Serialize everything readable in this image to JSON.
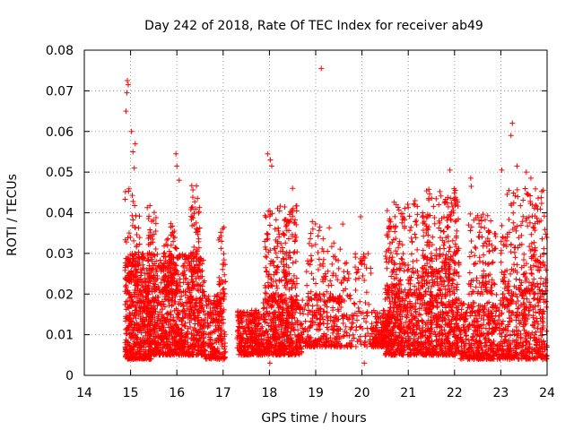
{
  "chart_data": {
    "type": "scatter",
    "title": "Day 242 of 2018, Rate Of TEC Index for receiver ab49",
    "xlabel": "GPS time / hours",
    "ylabel": "ROTI / TECUs",
    "xlim": [
      14,
      24
    ],
    "ylim": [
      0,
      0.08
    ],
    "xticks": [
      14,
      15,
      16,
      17,
      18,
      19,
      20,
      21,
      22,
      23,
      24
    ],
    "xtick_labels": [
      "14",
      "15",
      "16",
      "17",
      "18",
      "19",
      "20",
      "21",
      "22",
      "23",
      "24"
    ],
    "yticks": [
      0,
      0.01,
      0.02,
      0.03,
      0.04,
      0.05,
      0.06,
      0.07,
      0.08
    ],
    "ytick_labels": [
      "0",
      "0.01",
      "0.02",
      "0.03",
      "0.04",
      "0.05",
      "0.06",
      "0.07",
      "0.08"
    ],
    "grid": true,
    "marker": "+",
    "series_color": "#ff0000",
    "legend": "none",
    "highlighted_points": [
      {
        "x": 14.93,
        "y": 0.0725
      },
      {
        "x": 14.95,
        "y": 0.0715
      },
      {
        "x": 14.92,
        "y": 0.0695
      },
      {
        "x": 14.9,
        "y": 0.065
      },
      {
        "x": 15.02,
        "y": 0.06
      },
      {
        "x": 15.1,
        "y": 0.057
      },
      {
        "x": 15.05,
        "y": 0.055
      },
      {
        "x": 15.08,
        "y": 0.051
      },
      {
        "x": 15.98,
        "y": 0.0545
      },
      {
        "x": 16.0,
        "y": 0.0515
      },
      {
        "x": 16.05,
        "y": 0.048
      },
      {
        "x": 17.96,
        "y": 0.0545
      },
      {
        "x": 18.02,
        "y": 0.053
      },
      {
        "x": 18.05,
        "y": 0.0515
      },
      {
        "x": 18.5,
        "y": 0.046
      },
      {
        "x": 19.12,
        "y": 0.0755
      },
      {
        "x": 21.9,
        "y": 0.0505
      },
      {
        "x": 22.35,
        "y": 0.0485
      },
      {
        "x": 22.36,
        "y": 0.0465
      },
      {
        "x": 23.02,
        "y": 0.0505
      },
      {
        "x": 23.25,
        "y": 0.062
      },
      {
        "x": 23.22,
        "y": 0.059
      },
      {
        "x": 23.35,
        "y": 0.0515
      },
      {
        "x": 23.55,
        "y": 0.05
      },
      {
        "x": 23.65,
        "y": 0.0485
      },
      {
        "x": 20.6,
        "y": 0.0385
      },
      {
        "x": 19.97,
        "y": 0.039
      },
      {
        "x": 20.05,
        "y": 0.003
      },
      {
        "x": 17.0,
        "y": 0.004
      },
      {
        "x": 18.01,
        "y": 0.003
      }
    ],
    "clusters": [
      {
        "x_start": 14.88,
        "x_end": 15.45,
        "y_low": 0.004,
        "y_high": 0.03,
        "density": 520
      },
      {
        "x_start": 14.88,
        "x_end": 15.2,
        "y_low": 0.02,
        "y_high": 0.046,
        "density": 60
      },
      {
        "x_start": 15.35,
        "x_end": 15.55,
        "y_low": 0.015,
        "y_high": 0.042,
        "density": 70
      },
      {
        "x_start": 15.45,
        "x_end": 16.1,
        "y_low": 0.005,
        "y_high": 0.03,
        "density": 480
      },
      {
        "x_start": 15.7,
        "x_end": 16.0,
        "y_low": 0.02,
        "y_high": 0.038,
        "density": 80
      },
      {
        "x_start": 16.1,
        "x_end": 16.6,
        "y_low": 0.005,
        "y_high": 0.03,
        "density": 360
      },
      {
        "x_start": 16.3,
        "x_end": 16.5,
        "y_low": 0.025,
        "y_high": 0.047,
        "density": 60
      },
      {
        "x_start": 16.6,
        "x_end": 17.05,
        "y_low": 0.004,
        "y_high": 0.02,
        "density": 220
      },
      {
        "x_start": 16.9,
        "x_end": 17.05,
        "y_low": 0.02,
        "y_high": 0.037,
        "density": 30
      },
      {
        "x_start": 17.3,
        "x_end": 17.85,
        "y_low": 0.005,
        "y_high": 0.016,
        "density": 300
      },
      {
        "x_start": 17.85,
        "x_end": 18.7,
        "y_low": 0.005,
        "y_high": 0.018,
        "density": 420
      },
      {
        "x_start": 17.9,
        "x_end": 18.6,
        "y_low": 0.018,
        "y_high": 0.042,
        "density": 220
      },
      {
        "x_start": 18.7,
        "x_end": 19.6,
        "y_low": 0.007,
        "y_high": 0.02,
        "density": 240
      },
      {
        "x_start": 18.8,
        "x_end": 19.6,
        "y_low": 0.018,
        "y_high": 0.04,
        "density": 90
      },
      {
        "x_start": 19.6,
        "x_end": 20.2,
        "y_low": 0.007,
        "y_high": 0.03,
        "density": 120
      },
      {
        "x_start": 20.2,
        "x_end": 20.6,
        "y_low": 0.007,
        "y_high": 0.016,
        "density": 160
      },
      {
        "x_start": 20.5,
        "x_end": 21.2,
        "y_low": 0.005,
        "y_high": 0.02,
        "density": 360
      },
      {
        "x_start": 20.5,
        "x_end": 21.2,
        "y_low": 0.02,
        "y_high": 0.043,
        "density": 160
      },
      {
        "x_start": 21.2,
        "x_end": 22.1,
        "y_low": 0.005,
        "y_high": 0.025,
        "density": 520
      },
      {
        "x_start": 21.3,
        "x_end": 22.1,
        "y_low": 0.025,
        "y_high": 0.046,
        "density": 200
      },
      {
        "x_start": 22.1,
        "x_end": 22.9,
        "y_low": 0.004,
        "y_high": 0.018,
        "density": 360
      },
      {
        "x_start": 22.3,
        "x_end": 22.9,
        "y_low": 0.02,
        "y_high": 0.04,
        "density": 110
      },
      {
        "x_start": 22.9,
        "x_end": 24.0,
        "y_low": 0.004,
        "y_high": 0.02,
        "density": 420
      },
      {
        "x_start": 23.0,
        "x_end": 24.0,
        "y_low": 0.02,
        "y_high": 0.046,
        "density": 220
      }
    ]
  }
}
